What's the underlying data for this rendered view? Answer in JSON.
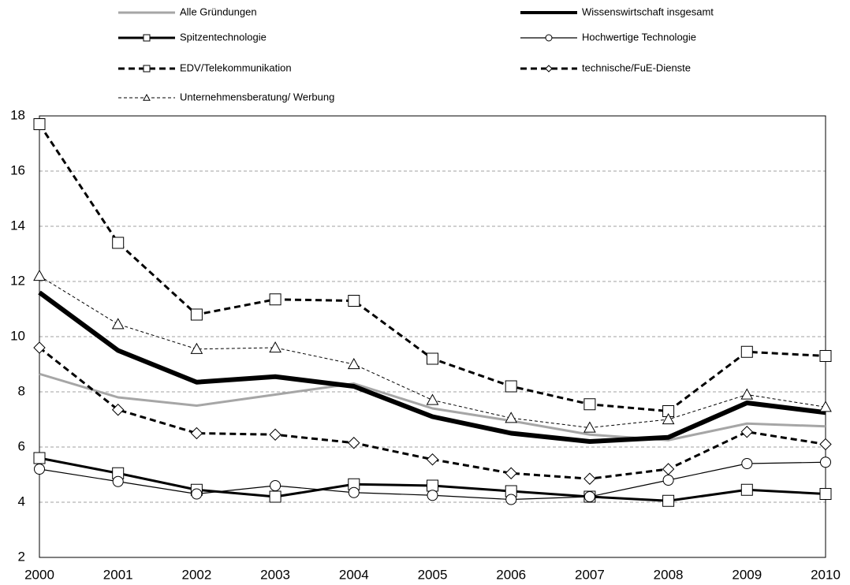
{
  "chart_data": {
    "type": "line",
    "categories": [
      "2000",
      "2001",
      "2002",
      "2003",
      "2004",
      "2005",
      "2006",
      "2007",
      "2008",
      "2009",
      "2010"
    ],
    "ylim": [
      2,
      18
    ],
    "yticks": [
      2,
      4,
      6,
      8,
      10,
      12,
      14,
      16,
      18
    ],
    "grid": true,
    "series": [
      {
        "name": "Alle Gründungen",
        "color": "#a6a6a6",
        "dash": "solid",
        "marker": "none",
        "values": [
          8.65,
          7.8,
          7.5,
          7.9,
          8.3,
          7.4,
          6.95,
          6.45,
          6.25,
          6.85,
          6.75
        ]
      },
      {
        "name": "Wissenswirtschaft insgesamt",
        "color": "#000000",
        "dash": "solid",
        "marker": "none",
        "values": [
          11.6,
          9.5,
          8.35,
          8.55,
          8.2,
          7.1,
          6.5,
          6.2,
          6.35,
          7.6,
          7.25
        ]
      },
      {
        "name": "Spitzentechnologie",
        "color": "#000000",
        "dash": "solid",
        "marker": "square",
        "values": [
          5.6,
          5.05,
          4.45,
          4.2,
          4.65,
          4.6,
          4.4,
          4.2,
          4.05,
          4.45,
          4.3
        ]
      },
      {
        "name": "Hochwertige Technologie",
        "color": "#000000",
        "dash": "solid",
        "marker": "circle",
        "values": [
          5.2,
          4.75,
          4.3,
          4.6,
          4.35,
          4.25,
          4.1,
          4.2,
          4.8,
          5.4,
          5.45
        ]
      },
      {
        "name": "EDV/Telekommunikation",
        "color": "#000000",
        "dash": "dashed",
        "marker": "square",
        "values": [
          17.7,
          13.4,
          10.8,
          11.35,
          11.3,
          9.2,
          8.2,
          7.55,
          7.3,
          9.45,
          9.3
        ]
      },
      {
        "name": "technische/FuE-Dienste",
        "color": "#000000",
        "dash": "dashed",
        "marker": "diamond",
        "values": [
          9.6,
          7.35,
          6.5,
          6.45,
          6.15,
          5.55,
          5.05,
          4.85,
          5.2,
          6.55,
          6.1
        ]
      },
      {
        "name": "Unternehmensberatung/ Werbung",
        "color": "#000000",
        "dash": "dotted",
        "marker": "triangle",
        "values": [
          12.2,
          10.45,
          9.55,
          9.6,
          9.0,
          7.7,
          7.05,
          6.7,
          7.0,
          7.9,
          7.45
        ]
      }
    ]
  }
}
